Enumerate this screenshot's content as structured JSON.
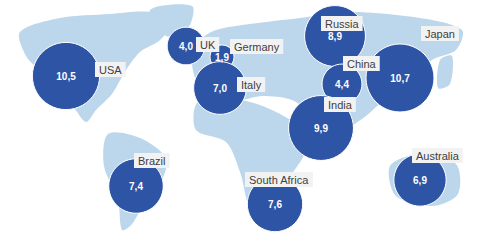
{
  "chart_data": {
    "type": "bubble_map",
    "categories": [
      "USA",
      "UK",
      "Germany",
      "Italy",
      "Russia",
      "China",
      "Japan",
      "India",
      "Brazil",
      "South Africa",
      "Australia"
    ],
    "values": [
      10.5,
      4.0,
      1.9,
      7.0,
      8.9,
      4.4,
      10.7,
      9.9,
      7.4,
      7.6,
      6.9
    ],
    "value_labels": [
      "10,5",
      "4,0",
      "1,9",
      "7,0",
      "8,9",
      "4,4",
      "10,7",
      "9,9",
      "7,4",
      "7,6",
      "6,9"
    ],
    "color": "#2e55a5",
    "data_labels": true
  }
}
